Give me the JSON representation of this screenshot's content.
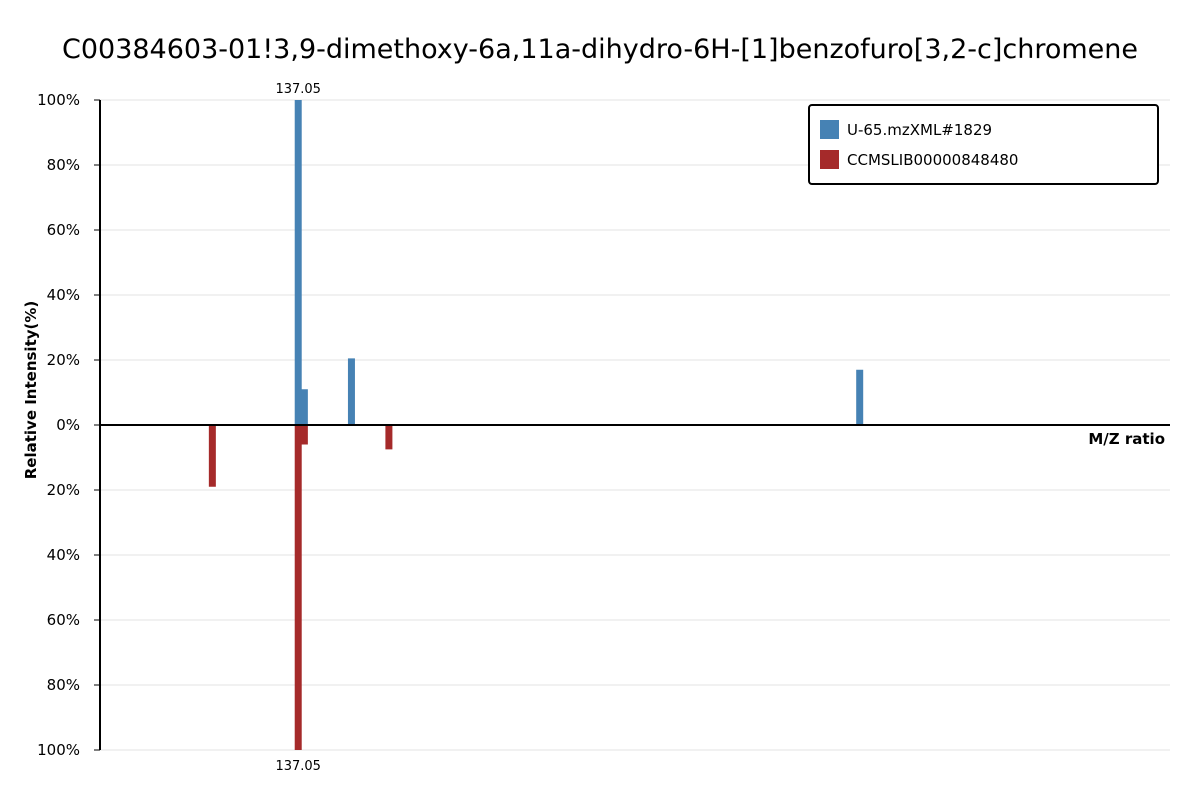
{
  "chart_data": {
    "type": "bar",
    "title": "C00384603-01!3,9-dimethoxy-6a,11a-dihydro-6H-[1]benzofuro[3,2-c]chromene",
    "xlabel": "M/Z ratio",
    "ylabel": "Relative Intensity(%)",
    "ylim_top": [
      0,
      100
    ],
    "ylim_bottom": [
      0,
      100
    ],
    "yticks_top": [
      "100%",
      "80%",
      "60%",
      "40%",
      "20%",
      "0%"
    ],
    "yticks_bottom": [
      "20%",
      "40%",
      "60%",
      "80%",
      "100%"
    ],
    "grid": true,
    "legend_position": "top-right",
    "x_range": [
      100,
      300
    ],
    "series": [
      {
        "name": "U-65.mzXML#1829",
        "color": "#4682b4",
        "direction": "up",
        "peaks": [
          {
            "mz": 137.05,
            "intensity": 100,
            "label": "137.05"
          },
          {
            "mz": 138.2,
            "intensity": 11
          },
          {
            "mz": 147.0,
            "intensity": 20.5
          },
          {
            "mz": 242.0,
            "intensity": 17
          }
        ]
      },
      {
        "name": "CCMSLIB00000848480",
        "color": "#a52a2a",
        "direction": "down",
        "peaks": [
          {
            "mz": 121.0,
            "intensity": 19
          },
          {
            "mz": 137.05,
            "intensity": 100,
            "label": "137.05"
          },
          {
            "mz": 138.2,
            "intensity": 6
          },
          {
            "mz": 154.0,
            "intensity": 7.5
          }
        ]
      }
    ]
  }
}
